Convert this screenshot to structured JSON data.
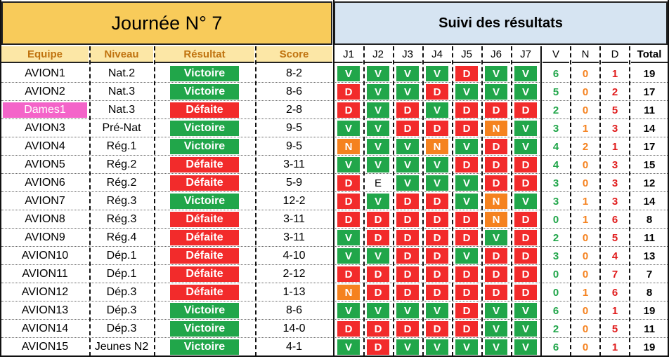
{
  "title_left": "Journée N° 7",
  "title_right": "Suivi des résultats",
  "headers": {
    "equipe": "Equipe",
    "niveau": "Niveau",
    "resultat": "Résultat",
    "score": "Score",
    "rounds": [
      "J1",
      "J2",
      "J3",
      "J4",
      "J5",
      "J6",
      "J7"
    ],
    "v": "V",
    "n": "N",
    "d": "D",
    "total": "Total"
  },
  "colors": {
    "win": "#21A64A",
    "loss": "#F22B2B",
    "draw": "#F5821F",
    "highlight": "#F464C9",
    "title_gold": "#F8CB5A",
    "title_blue": "#D6E4F2"
  },
  "rows": [
    {
      "team": "AVION1",
      "level": "Nat.2",
      "result": "Victoire",
      "score": "8-2",
      "marks": [
        "V",
        "V",
        "V",
        "V",
        "D",
        "V",
        "V"
      ],
      "v": "6",
      "n": "0",
      "d": "1",
      "total": "19"
    },
    {
      "team": "AVION2",
      "level": "Nat.3",
      "result": "Victoire",
      "score": "8-6",
      "marks": [
        "D",
        "V",
        "V",
        "D",
        "V",
        "V",
        "V"
      ],
      "v": "5",
      "n": "0",
      "d": "2",
      "total": "17"
    },
    {
      "team": "Dames1",
      "level": "Nat.3",
      "result": "Défaite",
      "score": "2-8",
      "marks": [
        "D",
        "V",
        "D",
        "V",
        "D",
        "D",
        "D"
      ],
      "v": "2",
      "n": "0",
      "d": "5",
      "total": "11",
      "highlight": true
    },
    {
      "team": "AVION3",
      "level": "Pré-Nat",
      "result": "Victoire",
      "score": "9-5",
      "marks": [
        "V",
        "V",
        "D",
        "D",
        "D",
        "N",
        "V"
      ],
      "v": "3",
      "n": "1",
      "d": "3",
      "total": "14"
    },
    {
      "team": "AVION4",
      "level": "Rég.1",
      "result": "Victoire",
      "score": "9-5",
      "marks": [
        "N",
        "V",
        "V",
        "N",
        "V",
        "D",
        "V"
      ],
      "v": "4",
      "n": "2",
      "d": "1",
      "total": "17"
    },
    {
      "team": "AVION5",
      "level": "Rég.2",
      "result": "Défaite",
      "score": "3-11",
      "marks": [
        "V",
        "V",
        "V",
        "V",
        "D",
        "D",
        "D"
      ],
      "v": "4",
      "n": "0",
      "d": "3",
      "total": "15"
    },
    {
      "team": "AVION6",
      "level": "Rég.2",
      "result": "Défaite",
      "score": "5-9",
      "marks": [
        "D",
        "E",
        "V",
        "V",
        "V",
        "D",
        "D"
      ],
      "v": "3",
      "n": "0",
      "d": "3",
      "total": "12"
    },
    {
      "team": "AVION7",
      "level": "Rég.3",
      "result": "Victoire",
      "score": "12-2",
      "marks": [
        "D",
        "V",
        "D",
        "D",
        "V",
        "N",
        "V"
      ],
      "v": "3",
      "n": "1",
      "d": "3",
      "total": "14"
    },
    {
      "team": "AVION8",
      "level": "Rég.3",
      "result": "Défaite",
      "score": "3-11",
      "marks": [
        "D",
        "D",
        "D",
        "D",
        "D",
        "N",
        "D"
      ],
      "v": "0",
      "n": "1",
      "d": "6",
      "total": "8"
    },
    {
      "team": "AVION9",
      "level": "Rég.4",
      "result": "Défaite",
      "score": "3-11",
      "marks": [
        "V",
        "D",
        "D",
        "D",
        "D",
        "V",
        "D"
      ],
      "v": "2",
      "n": "0",
      "d": "5",
      "total": "11"
    },
    {
      "team": "AVION10",
      "level": "Dép.1",
      "result": "Défaite",
      "score": "4-10",
      "marks": [
        "V",
        "V",
        "D",
        "D",
        "V",
        "D",
        "D"
      ],
      "v": "3",
      "n": "0",
      "d": "4",
      "total": "13"
    },
    {
      "team": "AVION11",
      "level": "Dép.1",
      "result": "Défaite",
      "score": "2-12",
      "marks": [
        "D",
        "D",
        "D",
        "D",
        "D",
        "D",
        "D"
      ],
      "v": "0",
      "n": "0",
      "d": "7",
      "total": "7"
    },
    {
      "team": "AVION12",
      "level": "Dép.3",
      "result": "Défaite",
      "score": "1-13",
      "marks": [
        "N",
        "D",
        "D",
        "D",
        "D",
        "D",
        "D"
      ],
      "v": "0",
      "n": "1",
      "d": "6",
      "total": "8"
    },
    {
      "team": "AVION13",
      "level": "Dép.3",
      "result": "Victoire",
      "score": "8-6",
      "marks": [
        "V",
        "V",
        "V",
        "V",
        "D",
        "V",
        "V"
      ],
      "v": "6",
      "n": "0",
      "d": "1",
      "total": "19"
    },
    {
      "team": "AVION14",
      "level": "Dép.3",
      "result": "Victoire",
      "score": "14-0",
      "marks": [
        "D",
        "D",
        "D",
        "D",
        "D",
        "V",
        "V"
      ],
      "v": "2",
      "n": "0",
      "d": "5",
      "total": "11"
    },
    {
      "team": "AVION15",
      "level": "Jeunes N2",
      "result": "Victoire",
      "score": "4-1",
      "marks": [
        "V",
        "D",
        "V",
        "V",
        "V",
        "V",
        "V"
      ],
      "v": "6",
      "n": "0",
      "d": "1",
      "total": "19"
    }
  ]
}
